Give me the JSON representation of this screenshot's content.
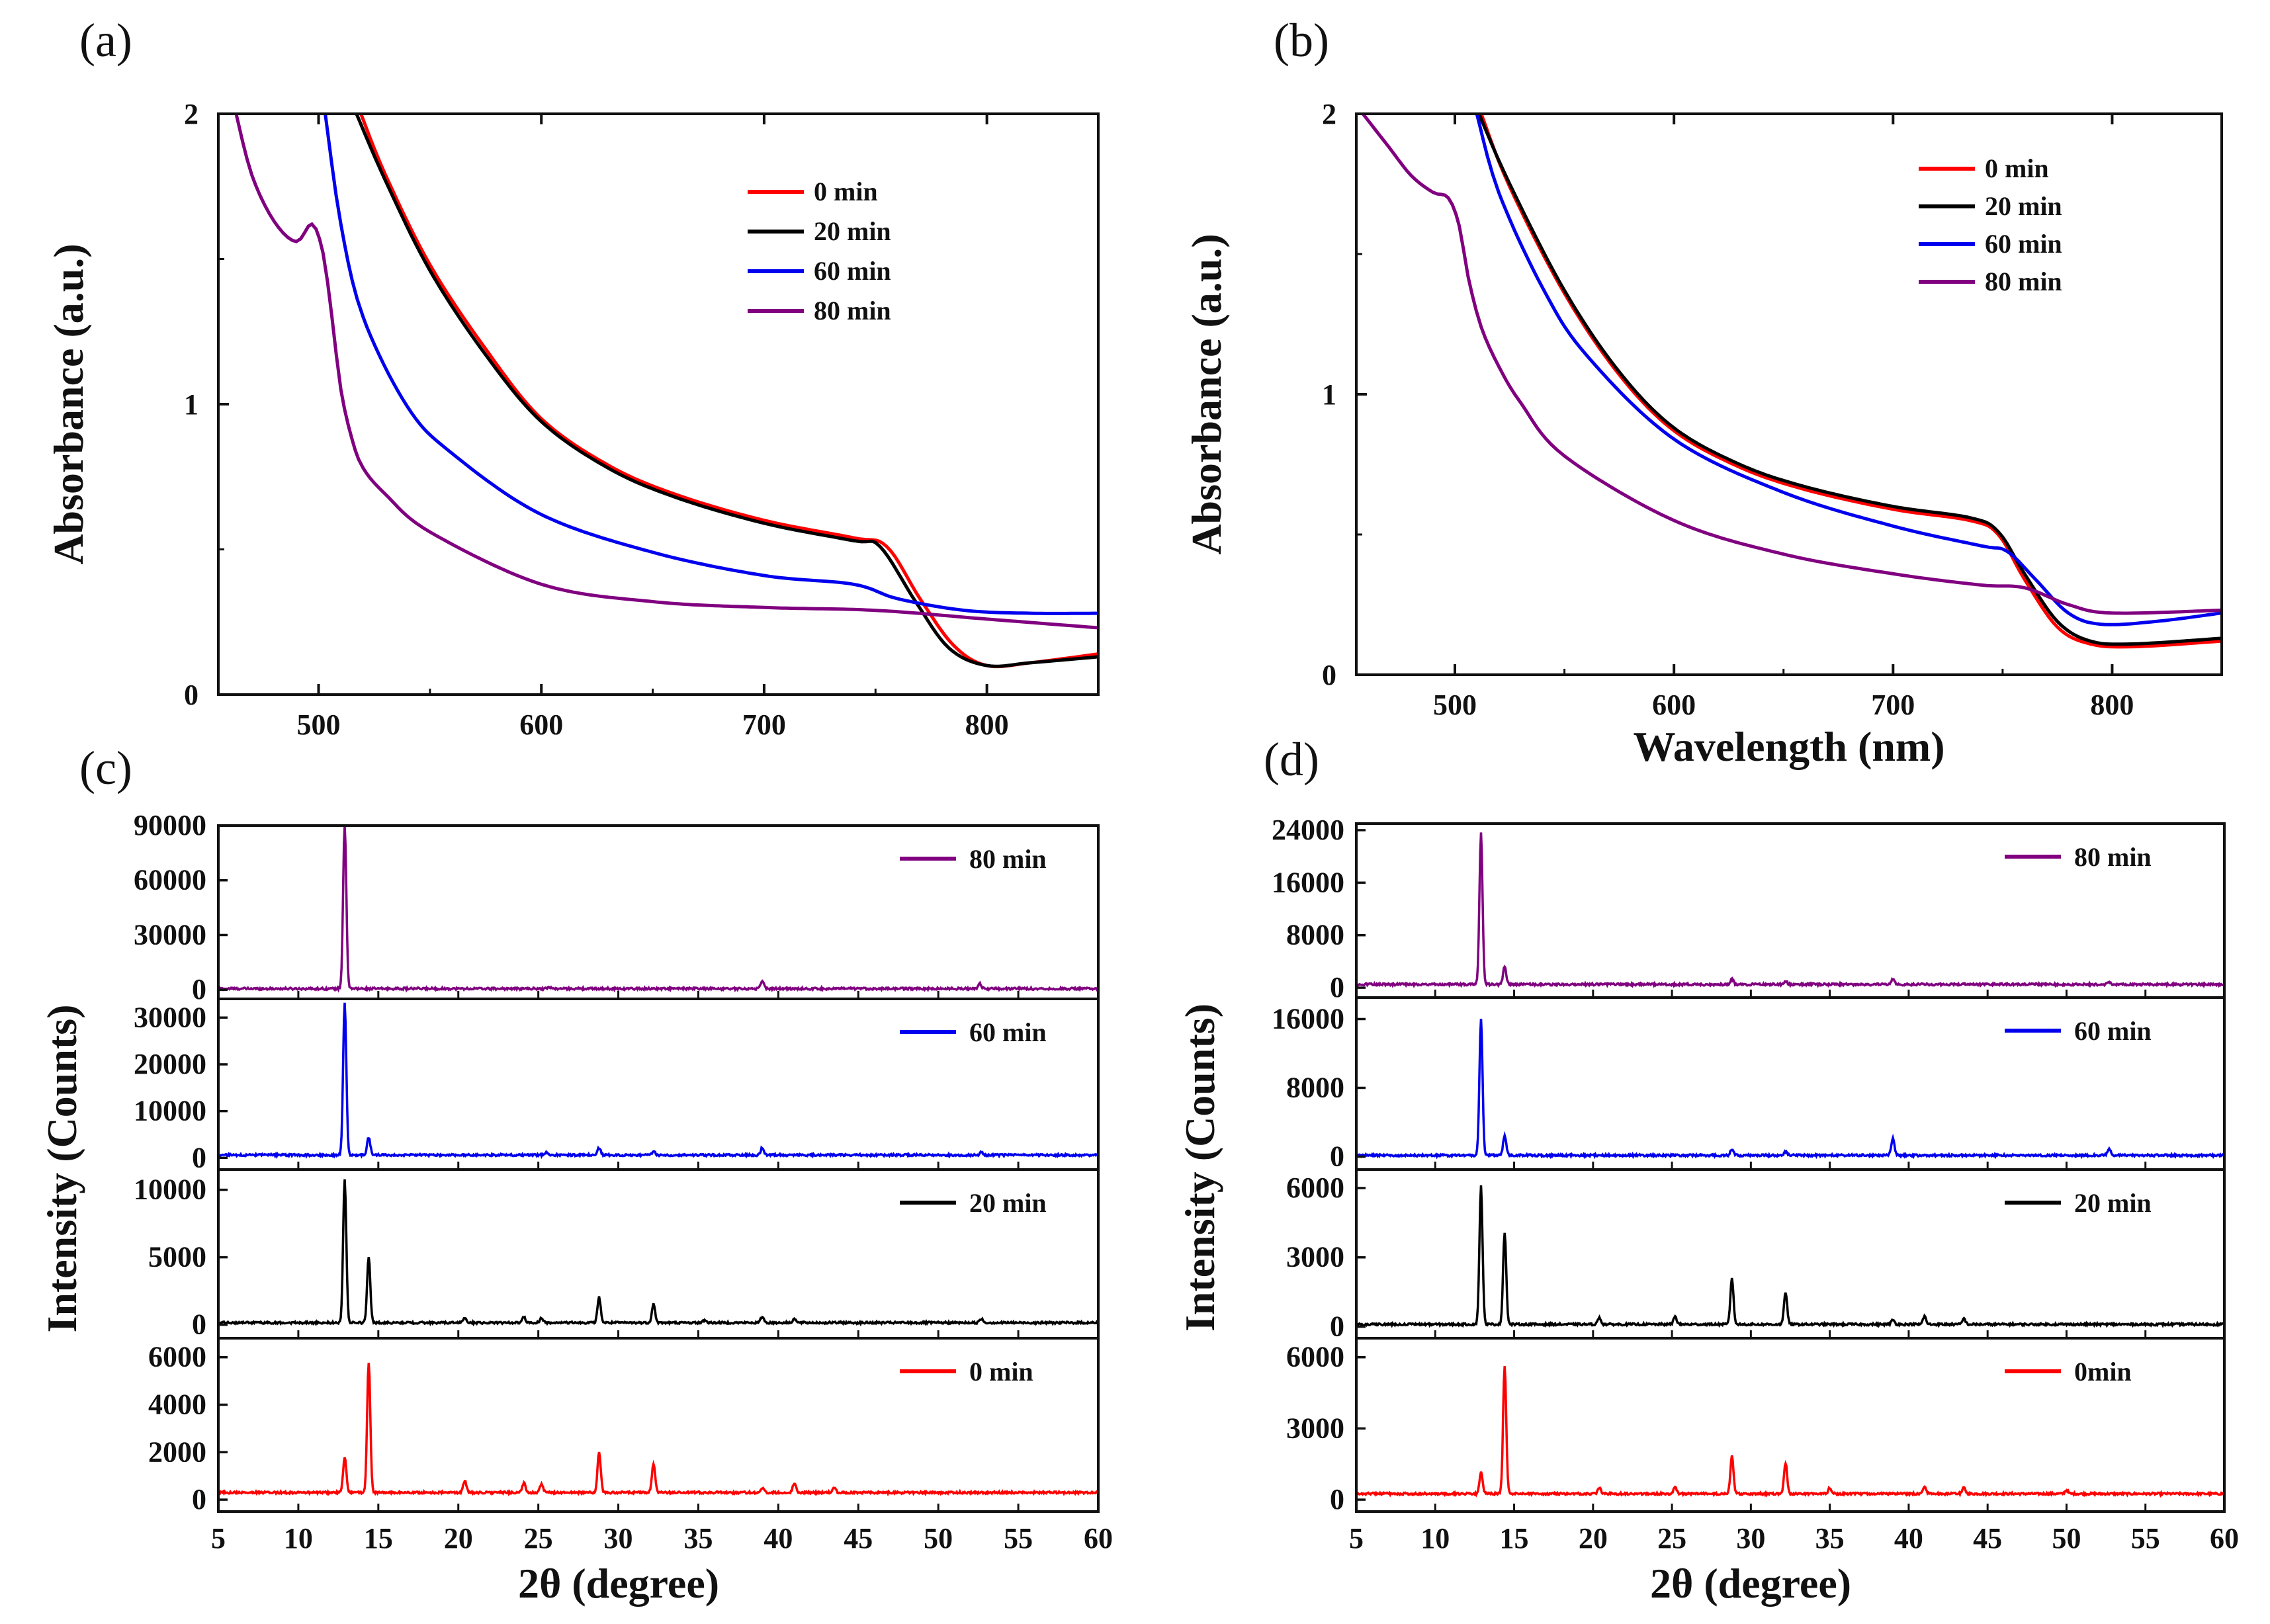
{
  "colors": {
    "t0": "#ff0000",
    "t20": "#000000",
    "t60": "#0000ee",
    "t80": "#800080",
    "axis": "#111111"
  },
  "chart_data": [
    {
      "panel": "(a)",
      "type": "line",
      "title": "",
      "xlabel": "",
      "ylabel": "Absorbance (a.u.)",
      "xlim": [
        455,
        850
      ],
      "ylim": [
        0,
        2
      ],
      "xticks": [
        500,
        600,
        700,
        800
      ],
      "yticks": [
        0,
        1,
        2
      ],
      "legend_position": "top-right",
      "series": [
        {
          "name": "0  min",
          "key": "t0",
          "x": [
            519,
            530,
            550,
            575,
            600,
            630,
            660,
            700,
            740,
            755,
            770,
            785,
            800,
            820,
            850
          ],
          "y": [
            2.0,
            1.79,
            1.48,
            1.19,
            0.95,
            0.79,
            0.69,
            0.6,
            0.54,
            0.51,
            0.33,
            0.17,
            0.1,
            0.11,
            0.14
          ]
        },
        {
          "name": "20 min",
          "key": "t20",
          "x": [
            517,
            530,
            550,
            575,
            600,
            630,
            660,
            700,
            740,
            752,
            768,
            783,
            800,
            820,
            850
          ],
          "y": [
            2.0,
            1.77,
            1.46,
            1.17,
            0.94,
            0.78,
            0.68,
            0.59,
            0.53,
            0.51,
            0.32,
            0.16,
            0.1,
            0.11,
            0.13
          ]
        },
        {
          "name": "60 min",
          "key": "t60",
          "x": [
            503,
            510,
            520,
            540,
            560,
            600,
            650,
            700,
            740,
            760,
            790,
            820,
            850
          ],
          "y": [
            2.0,
            1.62,
            1.3,
            0.99,
            0.83,
            0.62,
            0.49,
            0.41,
            0.38,
            0.33,
            0.29,
            0.28,
            0.28
          ]
        },
        {
          "name": "80 min",
          "key": "t80",
          "x": [
            463,
            470,
            480,
            490,
            497,
            502,
            506,
            510,
            515,
            520,
            530,
            550,
            600,
            650,
            700,
            750,
            800,
            850
          ],
          "y": [
            2.0,
            1.79,
            1.63,
            1.56,
            1.62,
            1.52,
            1.3,
            1.05,
            0.88,
            0.78,
            0.69,
            0.56,
            0.38,
            0.32,
            0.3,
            0.29,
            0.26,
            0.23
          ]
        }
      ]
    },
    {
      "panel": "(b)",
      "type": "line",
      "title": "",
      "xlabel": "Wavelength (nm)",
      "ylabel": "Absorbance (a.u.)",
      "xlim": [
        455,
        850
      ],
      "ylim": [
        0,
        2
      ],
      "xticks": [
        500,
        600,
        700,
        800
      ],
      "yticks": [
        0,
        1,
        2
      ],
      "legend_position": "top-right",
      "series": [
        {
          "name": "0  min",
          "key": "t0",
          "x": [
            512,
            525,
            550,
            575,
            600,
            630,
            660,
            700,
            735,
            748,
            760,
            775,
            790,
            810,
            850
          ],
          "y": [
            2.0,
            1.74,
            1.36,
            1.07,
            0.87,
            0.74,
            0.66,
            0.59,
            0.55,
            0.5,
            0.34,
            0.17,
            0.11,
            0.1,
            0.12
          ]
        },
        {
          "name": "20 min",
          "key": "t20",
          "x": [
            511,
            525,
            550,
            575,
            600,
            630,
            660,
            700,
            735,
            748,
            760,
            775,
            790,
            810,
            850
          ],
          "y": [
            2.0,
            1.75,
            1.37,
            1.08,
            0.88,
            0.75,
            0.67,
            0.6,
            0.56,
            0.51,
            0.36,
            0.19,
            0.12,
            0.11,
            0.13
          ]
        },
        {
          "name": "60 min",
          "key": "t60",
          "x": [
            510,
            520,
            540,
            560,
            600,
            650,
            700,
            740,
            752,
            765,
            780,
            795,
            820,
            850
          ],
          "y": [
            2.0,
            1.72,
            1.38,
            1.14,
            0.84,
            0.65,
            0.53,
            0.46,
            0.44,
            0.34,
            0.22,
            0.18,
            0.19,
            0.22
          ]
        },
        {
          "name": "80 min",
          "key": "t80",
          "x": [
            458,
            470,
            480,
            490,
            497,
            502,
            506,
            512,
            520,
            530,
            550,
            600,
            650,
            700,
            740,
            760,
            780,
            800,
            850
          ],
          "y": [
            2.0,
            1.88,
            1.78,
            1.72,
            1.7,
            1.6,
            1.42,
            1.24,
            1.1,
            0.97,
            0.78,
            0.55,
            0.43,
            0.36,
            0.32,
            0.31,
            0.25,
            0.22,
            0.23
          ]
        }
      ]
    },
    {
      "panel": "(c)",
      "type": "line",
      "title": "",
      "xlabel": "2θ  (degree)",
      "ylabel": "Intensity (Counts)",
      "xlim": [
        5,
        60
      ],
      "xticks": [
        5,
        10,
        15,
        20,
        25,
        30,
        35,
        40,
        45,
        50,
        55,
        60
      ],
      "layout": "stacked",
      "subplots": [
        {
          "name": "80 min",
          "key": "t80",
          "ylim": [
            -5000,
            90000
          ],
          "yticks": [
            0,
            30000,
            60000,
            90000
          ],
          "baseline": 600,
          "peaks": [
            [
              12.9,
              90000
            ],
            [
              25.7,
              900
            ],
            [
              39.0,
              4500
            ],
            [
              52.6,
              2800
            ]
          ]
        },
        {
          "name": "60 min",
          "key": "t60",
          "ylim": [
            -2500,
            34000
          ],
          "yticks": [
            0,
            10000,
            20000,
            30000
          ],
          "baseline": 600,
          "peaks": [
            [
              12.9,
              32500
            ],
            [
              14.4,
              3800
            ],
            [
              25.5,
              600
            ],
            [
              28.8,
              1500
            ],
            [
              32.2,
              800
            ],
            [
              39.0,
              1600
            ],
            [
              52.7,
              600
            ]
          ]
        },
        {
          "name": "20 min",
          "key": "t20",
          "ylim": [
            -1000,
            11500
          ],
          "yticks": [
            0,
            5000,
            10000
          ],
          "baseline": 150,
          "peaks": [
            [
              12.9,
              10600
            ],
            [
              14.4,
              4900
            ],
            [
              20.4,
              400
            ],
            [
              24.1,
              400
            ],
            [
              25.2,
              350
            ],
            [
              28.8,
              1900
            ],
            [
              32.2,
              1400
            ],
            [
              35.4,
              200
            ],
            [
              39.0,
              450
            ],
            [
              41.0,
              300
            ],
            [
              52.7,
              300
            ]
          ]
        },
        {
          "name": "0 min",
          "key": "t0",
          "ylim": [
            -500,
            6800
          ],
          "yticks": [
            0,
            2000,
            4000,
            6000
          ],
          "baseline": 300,
          "peaks": [
            [
              12.9,
              1500
            ],
            [
              14.4,
              5500
            ],
            [
              20.4,
              500
            ],
            [
              24.1,
              400
            ],
            [
              25.2,
              350
            ],
            [
              28.8,
              1700
            ],
            [
              32.2,
              1200
            ],
            [
              39.0,
              200
            ],
            [
              41.0,
              400
            ],
            [
              43.5,
              200
            ]
          ]
        }
      ]
    },
    {
      "panel": "(d)",
      "type": "line",
      "title": "",
      "xlabel": "2θ  (degree)",
      "ylabel": "Intensity (Counts)",
      "xlim": [
        5,
        60
      ],
      "xticks": [
        5,
        10,
        15,
        20,
        25,
        30,
        35,
        40,
        45,
        50,
        55,
        60
      ],
      "layout": "stacked",
      "subplots": [
        {
          "name": "80 min",
          "key": "t80",
          "ylim": [
            -1500,
            25000
          ],
          "yticks": [
            0,
            8000,
            16000,
            24000
          ],
          "baseline": 500,
          "peaks": [
            [
              12.9,
              23000
            ],
            [
              14.4,
              2700
            ],
            [
              28.8,
              800
            ],
            [
              32.2,
              500
            ],
            [
              39.0,
              800
            ],
            [
              52.7,
              400
            ]
          ]
        },
        {
          "name": "60  min",
          "key": "t60",
          "ylim": [
            -1500,
            18500
          ],
          "yticks": [
            0,
            8000,
            16000
          ],
          "baseline": 150,
          "peaks": [
            [
              12.9,
              15800
            ],
            [
              14.4,
              2300
            ],
            [
              28.8,
              700
            ],
            [
              32.2,
              400
            ],
            [
              39.0,
              2000
            ],
            [
              52.7,
              800
            ]
          ]
        },
        {
          "name": "20 min",
          "key": "t20",
          "ylim": [
            -500,
            6800
          ],
          "yticks": [
            0,
            3000,
            6000
          ],
          "baseline": 100,
          "peaks": [
            [
              12.9,
              6000
            ],
            [
              14.4,
              4000
            ],
            [
              20.4,
              300
            ],
            [
              25.2,
              350
            ],
            [
              28.8,
              2000
            ],
            [
              32.2,
              1400
            ],
            [
              39.0,
              200
            ],
            [
              41.0,
              350
            ],
            [
              43.5,
              250
            ]
          ]
        },
        {
          "name": "0min",
          "key": "t0",
          "ylim": [
            -500,
            6800
          ],
          "yticks": [
            0,
            3000,
            6000
          ],
          "baseline": 250,
          "peaks": [
            [
              12.9,
              900
            ],
            [
              14.4,
              5400
            ],
            [
              20.4,
              250
            ],
            [
              25.2,
              300
            ],
            [
              28.8,
              1600
            ],
            [
              32.2,
              1300
            ],
            [
              35.0,
              250
            ],
            [
              41.0,
              300
            ],
            [
              43.5,
              250
            ],
            [
              50.0,
              150
            ]
          ]
        }
      ]
    }
  ]
}
